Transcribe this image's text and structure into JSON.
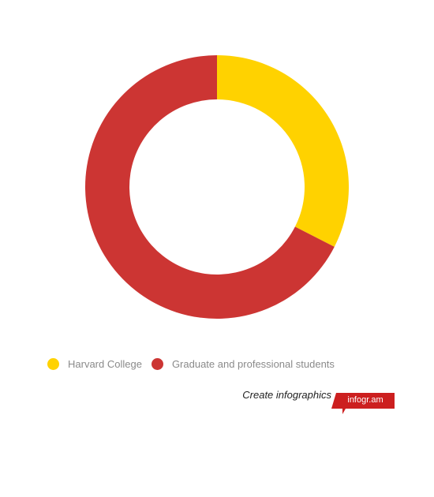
{
  "chart_data": {
    "type": "pie",
    "donut": true,
    "title": "",
    "categories": [
      "Harvard College",
      "Graduate and professional students"
    ],
    "values": [
      32.5,
      67.5
    ],
    "colors": [
      "#ffd200",
      "#cc3533"
    ],
    "legend": "bottom-left"
  },
  "legend": {
    "items": [
      {
        "label": "Harvard College",
        "color": "#ffd200"
      },
      {
        "label": "Graduate and professional students",
        "color": "#cc3533"
      }
    ]
  },
  "credit": {
    "text": "Create infographics",
    "badge": "infogr.am",
    "badge_color": "#cc1f1f"
  }
}
